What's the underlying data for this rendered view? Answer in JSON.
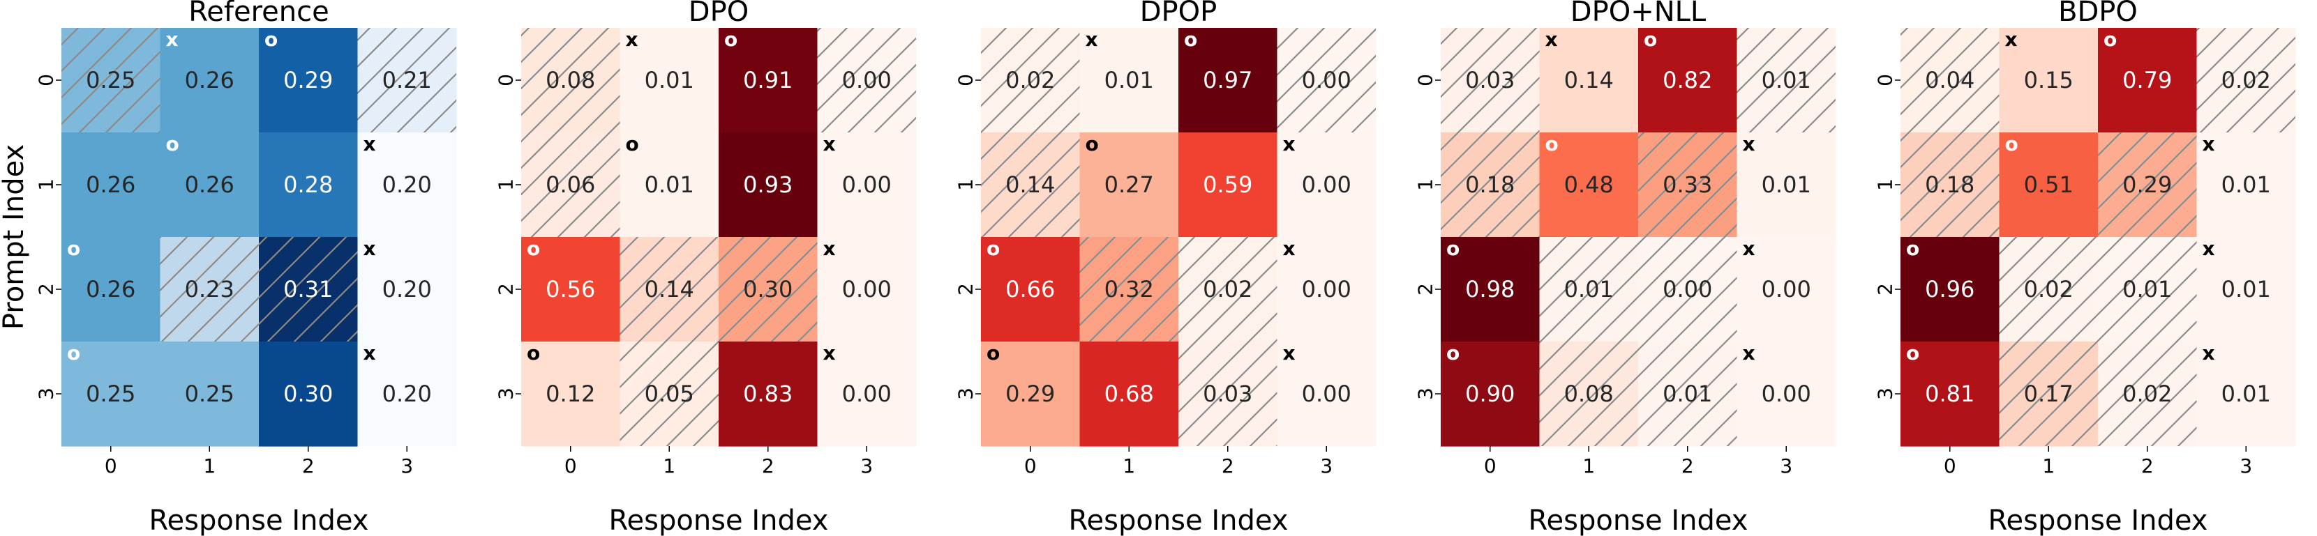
{
  "chart_data": [
    {
      "type": "heatmap",
      "title": "Reference",
      "colormap": "blues",
      "xlabel": "Response Index",
      "ylabel": "Prompt Index",
      "x_ticks": [
        "0",
        "1",
        "2",
        "3"
      ],
      "y_ticks": [
        "0",
        "1",
        "2",
        "3"
      ],
      "values": [
        [
          0.25,
          0.26,
          0.29,
          0.21
        ],
        [
          0.26,
          0.26,
          0.28,
          0.2
        ],
        [
          0.26,
          0.23,
          0.31,
          0.2
        ],
        [
          0.25,
          0.25,
          0.3,
          0.2
        ]
      ],
      "labels": [
        [
          "0.25",
          "0.26",
          "0.29",
          "0.21"
        ],
        [
          "0.26",
          "0.26",
          "0.28",
          "0.20"
        ],
        [
          "0.26",
          "0.23",
          "0.31",
          "0.20"
        ],
        [
          "0.25",
          "0.25",
          "0.30",
          "0.20"
        ]
      ],
      "hatched": [
        [
          true,
          false,
          false,
          true
        ],
        [
          false,
          false,
          false,
          false
        ],
        [
          false,
          true,
          true,
          false
        ],
        [
          false,
          false,
          false,
          false
        ]
      ],
      "markers": [
        {
          "row": 0,
          "col": 1,
          "text": "x"
        },
        {
          "row": 0,
          "col": 2,
          "text": "o"
        },
        {
          "row": 1,
          "col": 1,
          "text": "o"
        },
        {
          "row": 1,
          "col": 3,
          "text": "x"
        },
        {
          "row": 2,
          "col": 0,
          "text": "o"
        },
        {
          "row": 2,
          "col": 3,
          "text": "x"
        },
        {
          "row": 3,
          "col": 0,
          "text": "o"
        },
        {
          "row": 3,
          "col": 3,
          "text": "x"
        }
      ]
    },
    {
      "type": "heatmap",
      "title": "DPO",
      "colormap": "reds",
      "xlabel": "Response Index",
      "ylabel": "",
      "x_ticks": [
        "0",
        "1",
        "2",
        "3"
      ],
      "y_ticks": [
        "0",
        "1",
        "2",
        "3"
      ],
      "values": [
        [
          0.08,
          0.01,
          0.91,
          0.0
        ],
        [
          0.06,
          0.01,
          0.93,
          0.0
        ],
        [
          0.56,
          0.14,
          0.3,
          0.0
        ],
        [
          0.12,
          0.05,
          0.83,
          0.0
        ]
      ],
      "labels": [
        [
          "0.08",
          "0.01",
          "0.91",
          "0.00"
        ],
        [
          "0.06",
          "0.01",
          "0.93",
          "0.00"
        ],
        [
          "0.56",
          "0.14",
          "0.30",
          "0.00"
        ],
        [
          "0.12",
          "0.05",
          "0.83",
          "0.00"
        ]
      ],
      "hatched": [
        [
          true,
          false,
          false,
          true
        ],
        [
          true,
          false,
          false,
          false
        ],
        [
          false,
          true,
          true,
          false
        ],
        [
          false,
          true,
          false,
          false
        ]
      ],
      "markers": [
        {
          "row": 0,
          "col": 1,
          "text": "x"
        },
        {
          "row": 0,
          "col": 2,
          "text": "o"
        },
        {
          "row": 1,
          "col": 1,
          "text": "o"
        },
        {
          "row": 1,
          "col": 3,
          "text": "x"
        },
        {
          "row": 2,
          "col": 0,
          "text": "o"
        },
        {
          "row": 2,
          "col": 3,
          "text": "x"
        },
        {
          "row": 3,
          "col": 0,
          "text": "o"
        },
        {
          "row": 3,
          "col": 3,
          "text": "x"
        }
      ]
    },
    {
      "type": "heatmap",
      "title": "DPOP",
      "colormap": "reds",
      "xlabel": "Response Index",
      "ylabel": "",
      "x_ticks": [
        "0",
        "1",
        "2",
        "3"
      ],
      "y_ticks": [
        "0",
        "1",
        "2",
        "3"
      ],
      "values": [
        [
          0.02,
          0.01,
          0.97,
          0.0
        ],
        [
          0.14,
          0.27,
          0.59,
          0.0
        ],
        [
          0.66,
          0.32,
          0.02,
          0.0
        ],
        [
          0.29,
          0.68,
          0.03,
          0.0
        ]
      ],
      "labels": [
        [
          "0.02",
          "0.01",
          "0.97",
          "0.00"
        ],
        [
          "0.14",
          "0.27",
          "0.59",
          "0.00"
        ],
        [
          "0.66",
          "0.32",
          "0.02",
          "0.00"
        ],
        [
          "0.29",
          "0.68",
          "0.03",
          "0.00"
        ]
      ],
      "hatched": [
        [
          true,
          false,
          false,
          true
        ],
        [
          true,
          false,
          false,
          false
        ],
        [
          false,
          true,
          true,
          false
        ],
        [
          false,
          false,
          true,
          false
        ]
      ],
      "markers": [
        {
          "row": 0,
          "col": 1,
          "text": "x"
        },
        {
          "row": 0,
          "col": 2,
          "text": "o"
        },
        {
          "row": 1,
          "col": 1,
          "text": "o"
        },
        {
          "row": 1,
          "col": 3,
          "text": "x"
        },
        {
          "row": 2,
          "col": 0,
          "text": "o"
        },
        {
          "row": 2,
          "col": 3,
          "text": "x"
        },
        {
          "row": 3,
          "col": 0,
          "text": "o"
        },
        {
          "row": 3,
          "col": 3,
          "text": "x"
        }
      ]
    },
    {
      "type": "heatmap",
      "title": "DPO+NLL",
      "colormap": "reds",
      "xlabel": "Response Index",
      "ylabel": "",
      "x_ticks": [
        "0",
        "1",
        "2",
        "3"
      ],
      "y_ticks": [
        "0",
        "1",
        "2",
        "3"
      ],
      "values": [
        [
          0.03,
          0.14,
          0.82,
          0.01
        ],
        [
          0.18,
          0.48,
          0.33,
          0.01
        ],
        [
          0.98,
          0.01,
          0.0,
          0.0
        ],
        [
          0.9,
          0.08,
          0.01,
          0.0
        ]
      ],
      "labels": [
        [
          "0.03",
          "0.14",
          "0.82",
          "0.01"
        ],
        [
          "0.18",
          "0.48",
          "0.33",
          "0.01"
        ],
        [
          "0.98",
          "0.01",
          "0.00",
          "0.00"
        ],
        [
          "0.90",
          "0.08",
          "0.01",
          "0.00"
        ]
      ],
      "hatched": [
        [
          true,
          false,
          false,
          true
        ],
        [
          true,
          false,
          true,
          false
        ],
        [
          false,
          true,
          true,
          false
        ],
        [
          false,
          true,
          true,
          false
        ]
      ],
      "markers": [
        {
          "row": 0,
          "col": 1,
          "text": "x"
        },
        {
          "row": 0,
          "col": 2,
          "text": "o"
        },
        {
          "row": 1,
          "col": 1,
          "text": "o"
        },
        {
          "row": 1,
          "col": 3,
          "text": "x"
        },
        {
          "row": 2,
          "col": 0,
          "text": "o"
        },
        {
          "row": 2,
          "col": 3,
          "text": "x"
        },
        {
          "row": 3,
          "col": 0,
          "text": "o"
        },
        {
          "row": 3,
          "col": 3,
          "text": "x"
        }
      ]
    },
    {
      "type": "heatmap",
      "title": "BDPO",
      "colormap": "reds",
      "xlabel": "Response Index",
      "ylabel": "",
      "x_ticks": [
        "0",
        "1",
        "2",
        "3"
      ],
      "y_ticks": [
        "0",
        "1",
        "2",
        "3"
      ],
      "values": [
        [
          0.04,
          0.15,
          0.79,
          0.02
        ],
        [
          0.18,
          0.51,
          0.29,
          0.01
        ],
        [
          0.96,
          0.02,
          0.01,
          0.01
        ],
        [
          0.81,
          0.17,
          0.02,
          0.01
        ]
      ],
      "labels": [
        [
          "0.04",
          "0.15",
          "0.79",
          "0.02"
        ],
        [
          "0.18",
          "0.51",
          "0.29",
          "0.01"
        ],
        [
          "0.96",
          "0.02",
          "0.01",
          "0.01"
        ],
        [
          "0.81",
          "0.17",
          "0.02",
          "0.01"
        ]
      ],
      "hatched": [
        [
          true,
          false,
          false,
          true
        ],
        [
          true,
          false,
          true,
          false
        ],
        [
          false,
          true,
          true,
          false
        ],
        [
          false,
          true,
          true,
          false
        ]
      ],
      "markers": [
        {
          "row": 0,
          "col": 1,
          "text": "x"
        },
        {
          "row": 0,
          "col": 2,
          "text": "o"
        },
        {
          "row": 1,
          "col": 1,
          "text": "o"
        },
        {
          "row": 1,
          "col": 3,
          "text": "x"
        },
        {
          "row": 2,
          "col": 0,
          "text": "o"
        },
        {
          "row": 2,
          "col": 3,
          "text": "x"
        },
        {
          "row": 3,
          "col": 0,
          "text": "o"
        },
        {
          "row": 3,
          "col": 3,
          "text": "x"
        }
      ]
    }
  ]
}
